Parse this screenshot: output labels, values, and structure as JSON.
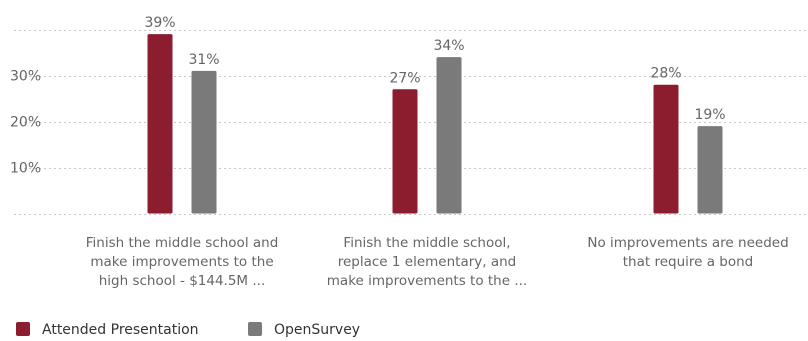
{
  "chart_data": {
    "type": "bar",
    "categories": [
      [
        "Finish the middle school and",
        "make improvements to the",
        "high school - $144.5M ..."
      ],
      [
        "Finish the middle school,",
        "replace 1 elementary, and",
        "make improvements to the ..."
      ],
      [
        "No improvements are needed",
        "that require a bond"
      ]
    ],
    "series": [
      {
        "name": "Attended Presentation",
        "values": [
          39,
          27,
          28
        ],
        "labels": [
          "39%",
          "27%",
          "28%"
        ],
        "color": "#8b1d2f"
      },
      {
        "name": "OpenSurvey",
        "values": [
          31,
          34,
          19
        ],
        "labels": [
          "31%",
          "34%",
          "19%"
        ],
        "color": "#7a7a7a"
      }
    ],
    "y_ticks": [
      {
        "value": 10,
        "label": "10%"
      },
      {
        "value": 20,
        "label": "20%"
      },
      {
        "value": 30,
        "label": "30%"
      }
    ],
    "gridline_values": [
      0,
      10,
      20,
      30,
      40
    ],
    "ylim": [
      0,
      40
    ],
    "grid": true,
    "legend_position": "bottom-left",
    "title": "",
    "xlabel": "",
    "ylabel": ""
  }
}
